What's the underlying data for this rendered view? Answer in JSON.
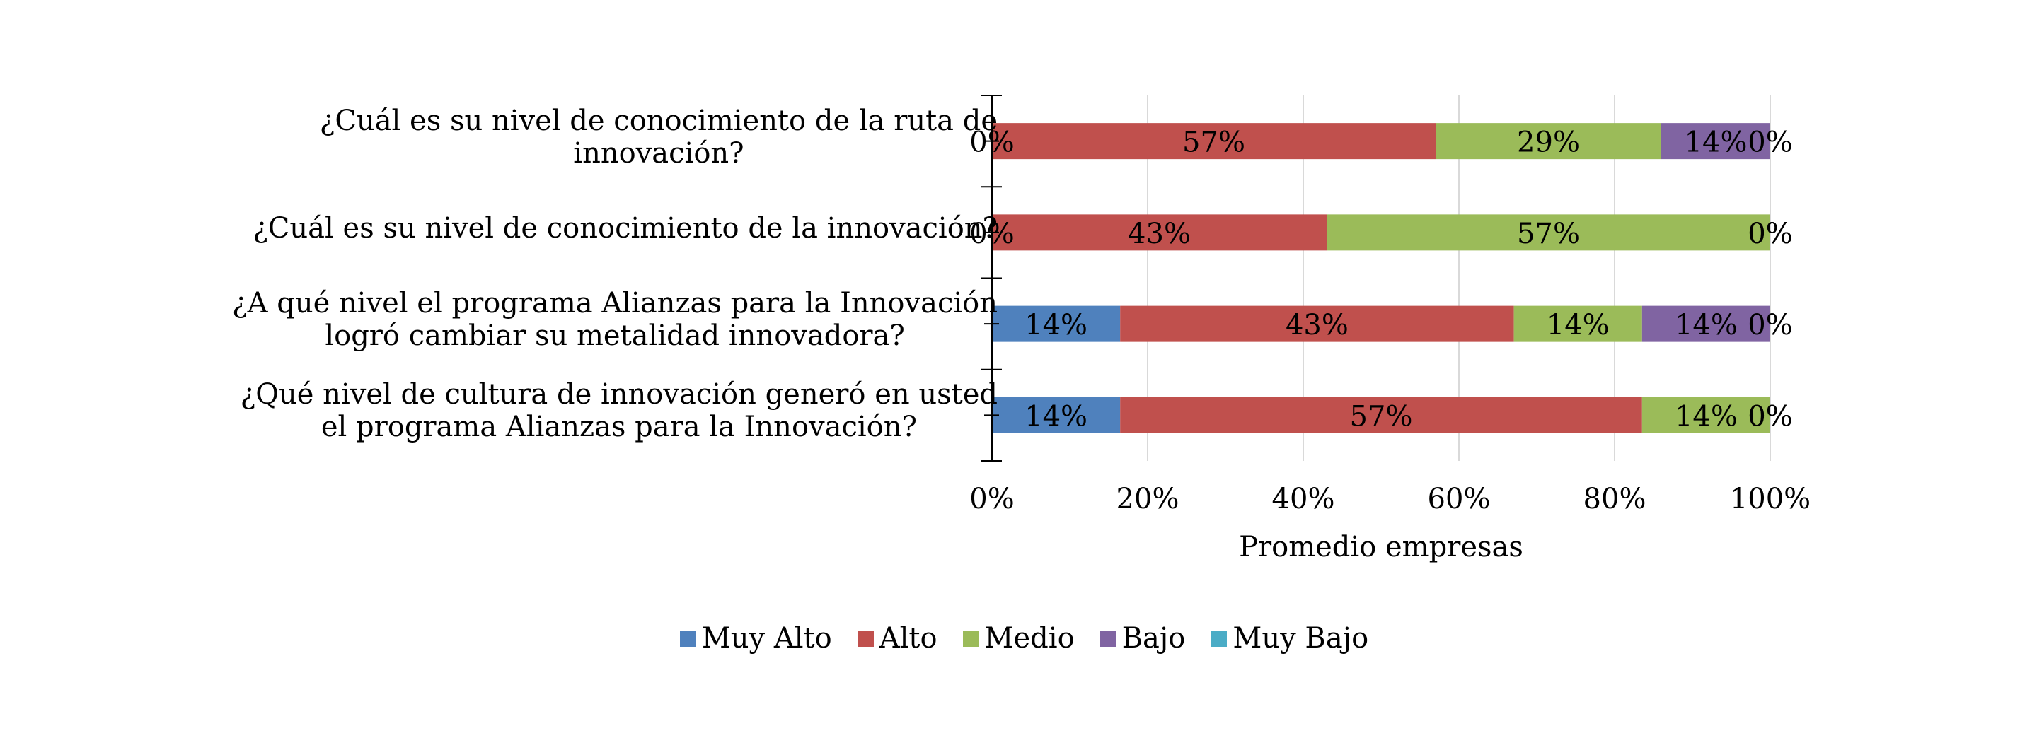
{
  "chart_data": {
    "type": "bar",
    "orientation": "horizontal",
    "stacked": "percent",
    "title": "",
    "xlabel": "Promedio empresas",
    "ylabel": "",
    "xlim": [
      0,
      100
    ],
    "x_ticks": [
      "0%",
      "20%",
      "40%",
      "60%",
      "80%",
      "100%"
    ],
    "x_tick_values": [
      0,
      20,
      40,
      60,
      80,
      100
    ],
    "grid": "vertical major gridlines",
    "legend_position": "bottom",
    "categories": [
      [
        "¿Cuál es su nivel de conocimiento de la ruta de",
        "innovación?"
      ],
      [
        "¿Cuál es su nivel de conocimiento de la innovación?"
      ],
      [
        "¿A qué nivel el programa Alianzas para la Innovación",
        "logró cambiar su metalidad innovadora?"
      ],
      [
        "¿Qué nivel de cultura de innovación generó en usted",
        "el programa Alianzas para la Innovación?"
      ]
    ],
    "series": [
      {
        "name": "Muy Alto",
        "color": "#4F81BD",
        "values": [
          0,
          0,
          14,
          14
        ],
        "labels": [
          "0%",
          "0%",
          "14%",
          "14%"
        ]
      },
      {
        "name": "Alto",
        "color": "#C0504D",
        "values": [
          57,
          43,
          43,
          57
        ],
        "labels": [
          "57%",
          "43%",
          "43%",
          "57%"
        ]
      },
      {
        "name": "Medio",
        "color": "#9BBB59",
        "values": [
          29,
          57,
          14,
          14
        ],
        "labels": [
          "29%",
          "57%",
          "14%",
          "14%"
        ]
      },
      {
        "name": "Bajo",
        "color": "#8064A2",
        "values": [
          14,
          0,
          14,
          0
        ],
        "labels": [
          "14%",
          "0%",
          "14%",
          "0%"
        ]
      },
      {
        "name": "Muy Bajo",
        "color": "#4BACC6",
        "values": [
          0,
          0,
          0,
          0
        ],
        "labels": [
          "0%",
          "0%",
          "0%",
          "0%"
        ]
      }
    ]
  },
  "colors": {
    "gridline": "#D9D9D9",
    "axis": "#000000",
    "text": "#000000"
  }
}
